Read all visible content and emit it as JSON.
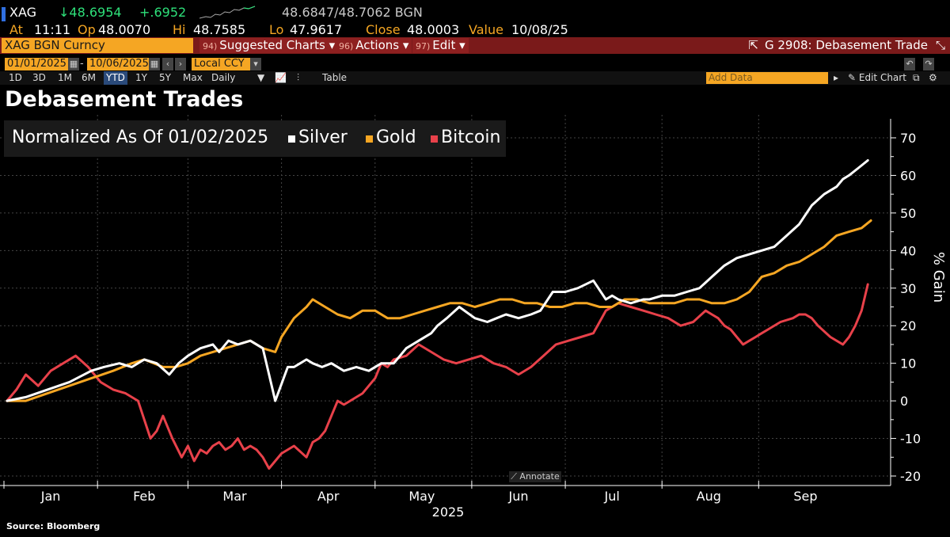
{
  "quote": {
    "ticker": "XAG",
    "last": "↓48.6954",
    "change": "+.6952",
    "bid_ask_label": "BGN",
    "bid_ask": "48.6847/48.7062 BGN",
    "at_label": "At",
    "at": "11:11",
    "op_label": "Op",
    "op": "48.0070",
    "hi_label": "Hi",
    "hi": "48.7585",
    "lo_label": "Lo",
    "lo": "47.9617",
    "close_label": "Close",
    "close": "48.0003",
    "value_label": "Value",
    "value": "10/08/25"
  },
  "toolbar": {
    "security": "XAG BGN Curncy",
    "suggested_num": "94)",
    "suggested": "Suggested Charts ▾",
    "actions_num": "96)",
    "actions": "Actions ▾",
    "edit_num": "97)",
    "edit": "Edit ▾",
    "chart_name": "G 2908: Debasement Trade"
  },
  "dates": {
    "start": "01/01/2025",
    "end": "10/06/2025",
    "currency": "Local CCY"
  },
  "periods": [
    "1D",
    "3D",
    "1M",
    "6M",
    "YTD",
    "1Y",
    "5Y",
    "Max"
  ],
  "active_period": "YTD",
  "frequency": "Daily",
  "table_label": "Table",
  "add_data_placeholder": "Add Data",
  "edit_chart": "Edit Chart",
  "title": "Debasement Trades",
  "annotate": "Annotate",
  "source": "Source: Bloomberg",
  "colors": {
    "silver": "#ffffff",
    "gold": "#f5a623",
    "bitcoin": "#e8414a",
    "accent_orange": "#f5a623",
    "toolbar_red": "#7a1a1a"
  },
  "chart_data": {
    "type": "line",
    "legend": {
      "label": "Normalized As Of 01/02/2025",
      "entries": [
        "Silver",
        "Gold",
        "Bitcoin"
      ]
    },
    "ylabel": "% Gain",
    "xlabel": "2025",
    "ylim": [
      -22,
      75
    ],
    "yticks": [
      70,
      60,
      50,
      40,
      30,
      20,
      10,
      0,
      -10,
      -20
    ],
    "xlim": [
      1,
      281
    ],
    "xticks": [
      {
        "label": "Jan",
        "day": 16
      },
      {
        "label": "Feb",
        "day": 46
      },
      {
        "label": "Mar",
        "day": 75
      },
      {
        "label": "Apr",
        "day": 105
      },
      {
        "label": "May",
        "day": 135
      },
      {
        "label": "Jun",
        "day": 166
      },
      {
        "label": "Jul",
        "day": 196
      },
      {
        "label": "Aug",
        "day": 227
      },
      {
        "label": "Sep",
        "day": 258
      }
    ],
    "series": [
      {
        "name": "Silver",
        "x": [
          2,
          8,
          15,
          22,
          29,
          33,
          38,
          42,
          46,
          50,
          54,
          57,
          60,
          64,
          68,
          70,
          73,
          76,
          80,
          84,
          88,
          92,
          94,
          96,
          98,
          100,
          103,
          106,
          110,
          114,
          118,
          122,
          126,
          130,
          134,
          138,
          140,
          143,
          147,
          152,
          156,
          159,
          162,
          166,
          170,
          173,
          177,
          181,
          185,
          190,
          194,
          196,
          198,
          202,
          206,
          208,
          212,
          216,
          220,
          224,
          228,
          232,
          236,
          240,
          244,
          248,
          252,
          256,
          260,
          264,
          268,
          270,
          272,
          275,
          278
        ],
        "y": [
          0,
          1,
          3,
          5,
          8,
          9,
          10,
          9,
          11,
          10,
          7,
          10,
          12,
          14,
          15,
          13,
          16,
          15,
          16,
          14,
          0,
          9,
          9,
          10,
          11,
          10,
          9,
          10,
          8,
          9,
          8,
          10,
          10,
          14,
          16,
          18,
          20,
          22,
          25,
          22,
          21,
          22,
          23,
          22,
          23,
          24,
          29,
          29,
          30,
          32,
          27,
          28,
          27,
          26,
          27,
          27,
          28,
          28,
          29,
          30,
          33,
          36,
          38,
          39,
          40,
          41,
          44,
          47,
          52,
          55,
          57,
          59,
          60,
          62,
          64
        ]
      },
      {
        "name": "Gold",
        "x": [
          2,
          8,
          15,
          22,
          29,
          36,
          42,
          46,
          52,
          56,
          60,
          64,
          68,
          72,
          76,
          80,
          84,
          88,
          90,
          94,
          98,
          100,
          104,
          108,
          112,
          116,
          120,
          124,
          128,
          132,
          136,
          140,
          144,
          148,
          152,
          156,
          160,
          164,
          168,
          172,
          176,
          180,
          184,
          188,
          192,
          196,
          200,
          204,
          208,
          212,
          216,
          220,
          224,
          228,
          232,
          236,
          240,
          244,
          248,
          252,
          256,
          260,
          264,
          268,
          272,
          276,
          279
        ],
        "y": [
          0,
          0,
          2,
          4,
          6,
          8,
          10,
          11,
          9,
          9,
          10,
          12,
          13,
          14,
          15,
          16,
          14,
          13,
          17,
          22,
          25,
          27,
          25,
          23,
          22,
          24,
          24,
          22,
          22,
          23,
          24,
          25,
          26,
          26,
          25,
          26,
          27,
          27,
          26,
          26,
          25,
          25,
          26,
          26,
          25,
          25,
          27,
          27,
          26,
          26,
          26,
          27,
          27,
          26,
          26,
          27,
          29,
          33,
          34,
          36,
          37,
          39,
          41,
          44,
          45,
          46,
          48
        ]
      },
      {
        "name": "Bitcoin",
        "x": [
          2,
          5,
          8,
          12,
          16,
          20,
          24,
          28,
          32,
          36,
          40,
          44,
          48,
          50,
          52,
          55,
          58,
          60,
          62,
          64,
          66,
          68,
          70,
          72,
          74,
          76,
          78,
          80,
          82,
          84,
          86,
          88,
          90,
          94,
          98,
          100,
          102,
          104,
          106,
          108,
          110,
          112,
          114,
          116,
          118,
          120,
          122,
          124,
          126,
          130,
          134,
          138,
          142,
          146,
          150,
          154,
          158,
          162,
          166,
          170,
          174,
          178,
          182,
          186,
          190,
          194,
          198,
          202,
          206,
          210,
          214,
          218,
          222,
          226,
          228,
          230,
          232,
          234,
          236,
          238,
          240,
          242,
          244,
          246,
          250,
          254,
          256,
          258,
          260,
          262,
          266,
          270,
          272,
          274,
          276,
          278
        ],
        "y": [
          0,
          3,
          7,
          4,
          8,
          10,
          12,
          9,
          5,
          3,
          2,
          0,
          -10,
          -8,
          -4,
          -10,
          -15,
          -12,
          -16,
          -13,
          -14,
          -12,
          -11,
          -13,
          -12,
          -10,
          -13,
          -12,
          -13,
          -15,
          -18,
          -16,
          -14,
          -12,
          -15,
          -11,
          -10,
          -8,
          -4,
          0,
          -1,
          0,
          1,
          2,
          4,
          6,
          10,
          9,
          11,
          12,
          15,
          13,
          11,
          10,
          11,
          12,
          10,
          9,
          7,
          9,
          12,
          15,
          16,
          17,
          18,
          24,
          26,
          25,
          24,
          23,
          22,
          20,
          21,
          24,
          23,
          22,
          20,
          19,
          17,
          15,
          16,
          17,
          18,
          19,
          21,
          22,
          23,
          23,
          22,
          20,
          17,
          15,
          17,
          20,
          24,
          31
        ]
      }
    ]
  }
}
